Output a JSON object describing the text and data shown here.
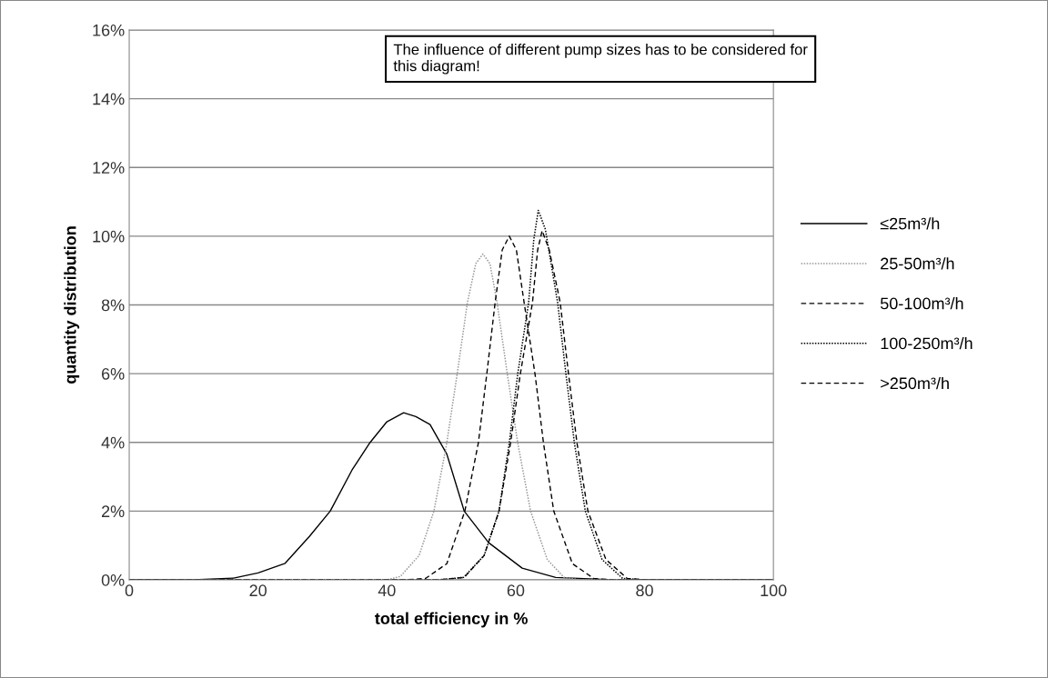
{
  "chart_data": {
    "type": "line",
    "xlabel": "total efficiency in %",
    "ylabel": "quantity distribution",
    "annotations": [
      "The influence of different pump sizes has to be considered for this diagram!"
    ],
    "xlim": [
      0,
      100
    ],
    "xticks": [
      0,
      20,
      40,
      60,
      80,
      100
    ],
    "ylim": [
      0,
      16
    ],
    "yticks": [
      {
        "value": 0,
        "label": "0%"
      },
      {
        "value": 2,
        "label": "2%"
      },
      {
        "value": 4,
        "label": "4%"
      },
      {
        "value": 6,
        "label": "6%"
      },
      {
        "value": 8,
        "label": "8%"
      },
      {
        "value": 10,
        "label": "10%"
      },
      {
        "value": 12,
        "label": "12%"
      },
      {
        "value": 14,
        "label": "14%"
      },
      {
        "value": 16,
        "label": "16%"
      }
    ],
    "grid": "y",
    "legend": "right",
    "marker": "none",
    "series": [
      {
        "name": "≤25m³/h",
        "color": "#000000",
        "line_style": "solid",
        "x": [
          0,
          10,
          16.2,
          20,
          24.2,
          28,
          31.2,
          34.6,
          37.4,
          40,
          42.6,
          44.5,
          46.7,
          49.3,
          52,
          55.8,
          61,
          66.2,
          75,
          100
        ],
        "values": [
          0,
          0,
          0.05,
          0.2,
          0.48,
          1.27,
          2,
          3.2,
          4,
          4.6,
          4.86,
          4.75,
          4.52,
          3.66,
          2,
          1.08,
          0.34,
          0.07,
          0,
          0
        ]
      },
      {
        "name": "25-50m³/h",
        "color": "#999999",
        "line_style": "dotted",
        "x": [
          0,
          40,
          42.1,
          45,
          47.3,
          49.3,
          50.9,
          52.5,
          53.8,
          54.9,
          56,
          57.1,
          58.7,
          60.3,
          62.3,
          64.9,
          67.5,
          70,
          100
        ],
        "values": [
          0,
          0,
          0.1,
          0.71,
          2,
          3.99,
          5.98,
          8.07,
          9.2,
          9.48,
          9.2,
          8.07,
          5.98,
          3.99,
          2,
          0.59,
          0.07,
          0,
          0
        ]
      },
      {
        "name": "50-100m³/h",
        "color": "#000000",
        "line_style": "dashed",
        "x": [
          0,
          43,
          46,
          49.3,
          52.1,
          54.2,
          55.5,
          56.8,
          57.9,
          59,
          60.1,
          61.3,
          63,
          64.3,
          65.9,
          68.8,
          72.1,
          75,
          100
        ],
        "values": [
          0,
          0,
          0.04,
          0.47,
          2,
          3.99,
          5.98,
          8.07,
          9.6,
          10,
          9.6,
          8.07,
          5.98,
          3.99,
          2,
          0.47,
          0.04,
          0,
          0
        ]
      },
      {
        "name": "100-250m³/h",
        "color": "#000000",
        "line_style": "dotted",
        "x": [
          0,
          48,
          51.9,
          55.1,
          57.4,
          59,
          60.3,
          62,
          62.8,
          63.5,
          64.6,
          66.5,
          67.8,
          69.1,
          70.8,
          73.4,
          76.6,
          80,
          100
        ],
        "values": [
          0,
          0,
          0.07,
          0.71,
          2,
          3.99,
          5.98,
          8.07,
          9.9,
          10.75,
          10.2,
          8.07,
          5.98,
          3.99,
          2,
          0.59,
          0.04,
          0,
          0
        ]
      },
      {
        "name": ">250m³/h",
        "color": "#000000",
        "line_style": "dashed",
        "x": [
          0,
          48,
          52,
          55.1,
          57.4,
          59.2,
          60.7,
          62.6,
          63.4,
          64.1,
          65.2,
          66.9,
          68.2,
          69.5,
          71.2,
          74,
          77.3,
          80,
          100
        ],
        "values": [
          0,
          0,
          0.07,
          0.71,
          2,
          3.99,
          5.98,
          8.07,
          9.6,
          10.16,
          9.6,
          8.07,
          5.98,
          3.99,
          2,
          0.59,
          0.04,
          0,
          0
        ]
      }
    ]
  }
}
